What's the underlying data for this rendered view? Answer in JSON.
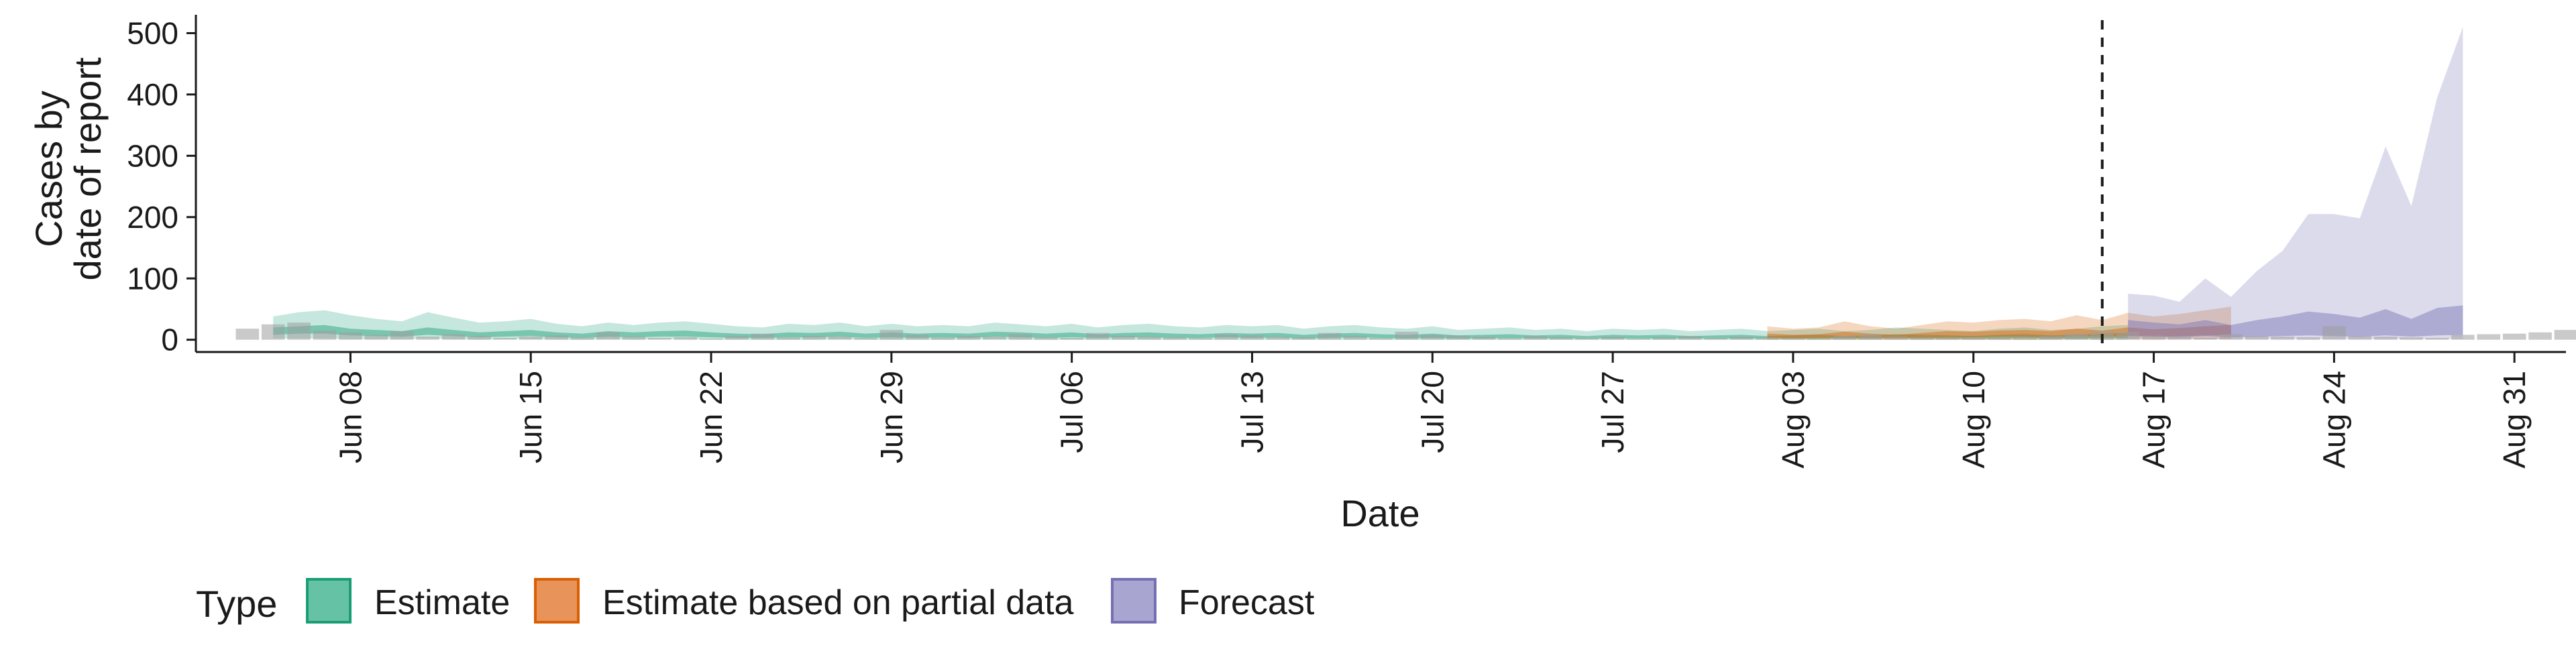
{
  "chart_data": {
    "type": "area",
    "xlabel": "Date",
    "ylabel_lines": [
      "Cases by",
      "date of report"
    ],
    "x_domain": [
      "2020-06-02",
      "2020-09-02"
    ],
    "ylim": [
      -20,
      530
    ],
    "y_ticks": [
      0,
      100,
      200,
      300,
      400,
      500
    ],
    "x_ticks": [
      {
        "date": "2020-06-08",
        "label": "Jun 08"
      },
      {
        "date": "2020-06-15",
        "label": "Jun 15"
      },
      {
        "date": "2020-06-22",
        "label": "Jun 22"
      },
      {
        "date": "2020-06-29",
        "label": "Jun 29"
      },
      {
        "date": "2020-07-06",
        "label": "Jul 06"
      },
      {
        "date": "2020-07-13",
        "label": "Jul 13"
      },
      {
        "date": "2020-07-20",
        "label": "Jul 20"
      },
      {
        "date": "2020-07-27",
        "label": "Jul 27"
      },
      {
        "date": "2020-08-03",
        "label": "Aug 03"
      },
      {
        "date": "2020-08-10",
        "label": "Aug 10"
      },
      {
        "date": "2020-08-17",
        "label": "Aug 17"
      },
      {
        "date": "2020-08-24",
        "label": "Aug 24"
      },
      {
        "date": "2020-08-31",
        "label": "Aug 31"
      }
    ],
    "forecast_date": "2020-08-15",
    "grid": false,
    "legend": {
      "title": "Type",
      "position": "bottom-left",
      "entries": [
        {
          "label": "Estimate",
          "fill": "#66C2A5",
          "stroke": "#1B9E77"
        },
        {
          "label": "Estimate based on partial data",
          "fill": "#E8935A",
          "stroke": "#D95F02"
        },
        {
          "label": "Forecast",
          "fill": "#A9A5D1",
          "stroke": "#7570B3"
        }
      ]
    },
    "colors": {
      "Estimate": "#1B9E77",
      "Estimate based on partial data": "#D95F02",
      "Forecast": "#7570B3",
      "reported": "#9E9E9E"
    },
    "series": [
      {
        "name": "Estimate",
        "start": "2020-06-05",
        "upper90": [
          38,
          45,
          48,
          40,
          34,
          30,
          45,
          36,
          28,
          30,
          34,
          26,
          22,
          28,
          24,
          28,
          30,
          26,
          22,
          20,
          26,
          24,
          28,
          22,
          26,
          22,
          24,
          22,
          28,
          25,
          22,
          26,
          20,
          24,
          26,
          22,
          20,
          24,
          22,
          24,
          18,
          22,
          24,
          20,
          18,
          22,
          16,
          18,
          20,
          16,
          18,
          14,
          18,
          16,
          18,
          14,
          16,
          18,
          14,
          16,
          18,
          14,
          16,
          20,
          18,
          16,
          14,
          18,
          20,
          16,
          18,
          22,
          24
        ],
        "upper50": [
          20,
          22,
          24,
          18,
          16,
          14,
          20,
          16,
          12,
          14,
          16,
          12,
          10,
          14,
          12,
          14,
          15,
          12,
          10,
          9,
          12,
          11,
          13,
          10,
          12,
          10,
          11,
          10,
          13,
          12,
          10,
          12,
          9,
          11,
          12,
          10,
          9,
          11,
          10,
          11,
          8,
          10,
          11,
          9,
          8,
          10,
          7,
          8,
          9,
          7,
          8,
          6,
          8,
          7,
          8,
          6,
          7,
          8,
          6,
          7,
          8,
          6,
          7,
          9,
          8,
          7,
          6,
          8,
          9,
          7,
          8,
          10,
          11
        ],
        "lower50": [
          8,
          10,
          10,
          7,
          6,
          5,
          8,
          6,
          4,
          5,
          6,
          4,
          3,
          5,
          4,
          5,
          5,
          4,
          3,
          3,
          4,
          4,
          5,
          3,
          4,
          3,
          4,
          3,
          5,
          4,
          3,
          4,
          3,
          4,
          4,
          3,
          3,
          4,
          3,
          4,
          2,
          3,
          4,
          3,
          2,
          3,
          2,
          2,
          3,
          2,
          2,
          2,
          2,
          2,
          2,
          2,
          2,
          2,
          2,
          2,
          2,
          2,
          2,
          3,
          2,
          2,
          2,
          2,
          3,
          2,
          2,
          3,
          3
        ],
        "lower90": [
          2,
          2,
          2,
          1,
          1,
          1,
          2,
          1,
          0,
          1,
          1,
          0,
          0,
          1,
          0,
          1,
          1,
          0,
          0,
          0,
          0,
          0,
          1,
          0,
          0,
          0,
          0,
          0,
          1,
          0,
          0,
          0,
          0,
          0,
          0,
          0,
          0,
          0,
          0,
          0,
          0,
          0,
          0,
          0,
          0,
          0,
          0,
          0,
          0,
          0,
          0,
          0,
          0,
          0,
          0,
          0,
          0,
          0,
          0,
          0,
          0,
          0,
          0,
          0,
          0,
          0,
          0,
          0,
          0,
          0,
          0,
          0,
          0
        ]
      },
      {
        "name": "Estimate based on partial data",
        "start": "2020-08-02",
        "upper90": [
          22,
          18,
          20,
          30,
          22,
          18,
          24,
          30,
          28,
          32,
          34,
          30,
          40,
          32,
          44,
          38,
          42,
          48,
          54
        ],
        "upper50": [
          10,
          8,
          9,
          13,
          10,
          8,
          11,
          14,
          13,
          15,
          16,
          14,
          18,
          15,
          20,
          17,
          19,
          22,
          24
        ],
        "lower50": [
          3,
          2,
          3,
          4,
          3,
          2,
          3,
          4,
          4,
          5,
          5,
          4,
          6,
          5,
          6,
          5,
          6,
          7,
          8
        ],
        "lower90": [
          0,
          0,
          0,
          0,
          0,
          0,
          0,
          0,
          0,
          0,
          0,
          0,
          1,
          0,
          1,
          0,
          1,
          1,
          1
        ]
      },
      {
        "name": "Forecast",
        "start": "2020-08-16",
        "upper90": [
          75,
          72,
          62,
          100,
          70,
          112,
          145,
          205,
          205,
          198,
          315,
          218,
          395,
          510
        ],
        "upper50": [
          32,
          28,
          25,
          32,
          24,
          32,
          38,
          46,
          42,
          36,
          50,
          34,
          52,
          56
        ],
        "lower50": [
          6,
          5,
          4,
          6,
          4,
          5,
          6,
          7,
          6,
          5,
          7,
          5,
          7,
          8
        ],
        "lower90": [
          1,
          1,
          1,
          1,
          1,
          1,
          1,
          1,
          1,
          1,
          1,
          1,
          1,
          1
        ]
      }
    ],
    "reported_cases": {
      "start": "2020-06-04",
      "values": [
        18,
        25,
        28,
        15,
        12,
        8,
        14,
        5,
        9,
        6,
        3,
        5,
        7,
        4,
        12,
        5,
        3,
        4,
        2,
        6,
        10,
        4,
        6,
        5,
        3,
        16,
        8,
        4,
        6,
        5,
        9,
        4,
        3,
        11,
        6,
        5,
        4,
        3,
        9,
        7,
        5,
        4,
        11,
        6,
        3,
        13,
        8,
        7,
        5,
        3,
        6,
        4,
        3,
        5,
        2,
        4,
        6,
        3,
        5,
        4,
        3,
        2,
        6,
        9,
        5,
        4,
        3,
        4,
        3,
        4,
        6,
        10,
        14,
        13,
        7,
        5,
        3,
        9,
        6,
        5,
        4,
        22,
        6,
        5,
        4,
        3,
        8,
        9,
        10,
        12,
        16,
        20
      ]
    }
  }
}
